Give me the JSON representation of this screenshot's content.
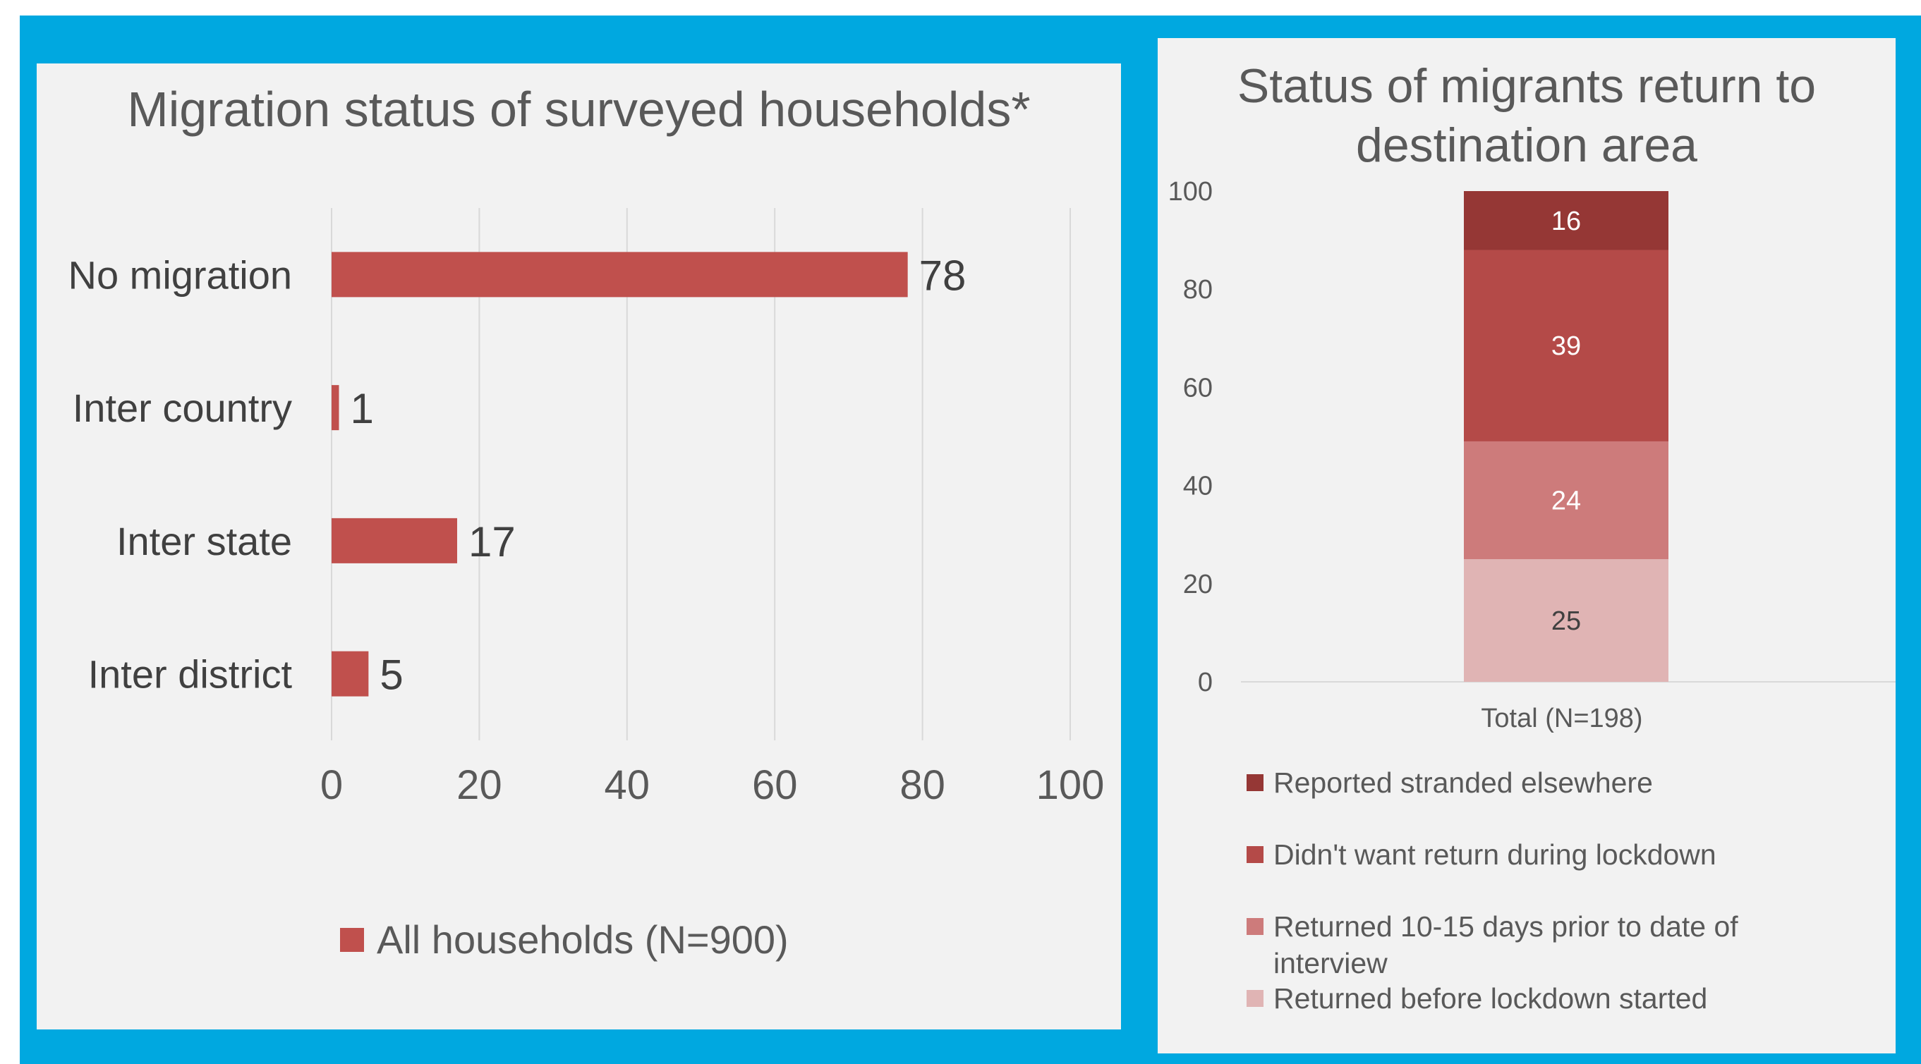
{
  "chart_data": [
    {
      "type": "bar",
      "orientation": "horizontal",
      "title": "Migration status of surveyed households*",
      "categories": [
        "No migration",
        "Inter country",
        "Inter state",
        "Inter district"
      ],
      "series": [
        {
          "name": "All households (N=900)",
          "values": [
            78,
            1,
            17,
            5
          ],
          "color": "#c0504d"
        }
      ],
      "xlim": [
        0,
        100
      ],
      "xticks": [
        0,
        20,
        40,
        60,
        80,
        100
      ],
      "grid": true,
      "data_labels": true,
      "legend_position": "bottom"
    },
    {
      "type": "bar",
      "stacked": true,
      "title": "Status of migrants return to destination area",
      "categories": [
        "Total (N=198)"
      ],
      "series": [
        {
          "name": "Returned before lockdown started",
          "values": [
            25
          ],
          "color": "#e0b4b4",
          "label_color": "#404040"
        },
        {
          "name": "Returned 10-15 days prior to date of interview",
          "values": [
            24
          ],
          "color": "#cd7b7b",
          "label_color": "#ffffff"
        },
        {
          "name": "Didn't want return during lockdown",
          "values": [
            39
          ],
          "color": "#b44a48",
          "label_color": "#ffffff"
        },
        {
          "name": "Reported stranded elsewhere",
          "values": [
            16
          ],
          "color": "#953735",
          "label_color": "#ffffff"
        }
      ],
      "ylim": [
        0,
        100
      ],
      "yticks": [
        0,
        20,
        40,
        60,
        80,
        100
      ],
      "grid": false,
      "data_labels": true,
      "legend_position": "bottom",
      "legend_order": [
        "Reported stranded elsewhere",
        "Didn't want return during lockdown",
        "Returned 10-15 days prior to date of interview",
        "Returned before lockdown started"
      ]
    }
  ]
}
